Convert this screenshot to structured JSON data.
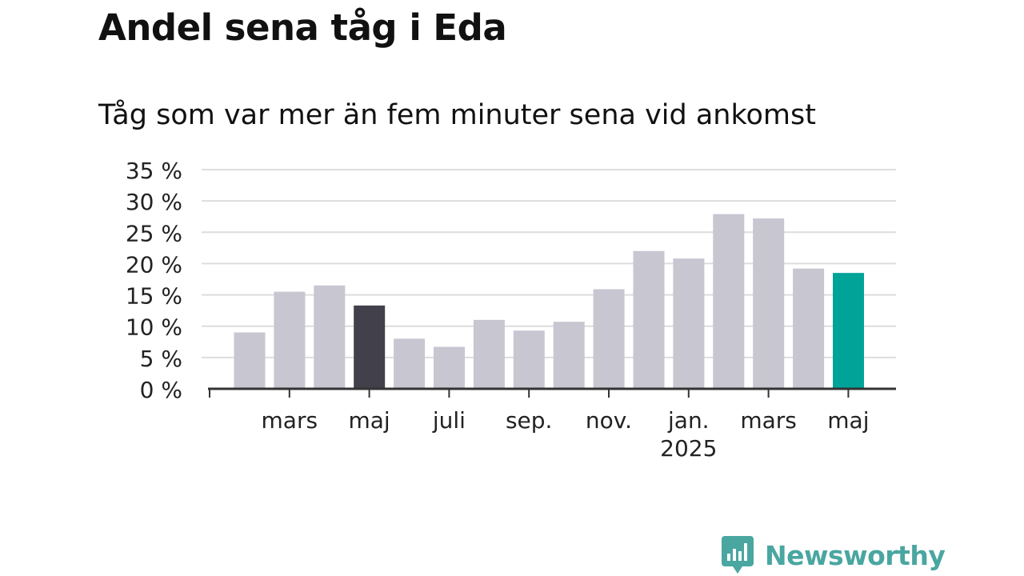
{
  "header": {
    "title": "Andel sena tåg i Eda",
    "subtitle": "Tåg som var mer än fem minuter sena vid ankomst"
  },
  "brand": {
    "name": "Newsworthy",
    "color": "#4aa6a0"
  },
  "colors": {
    "bar_default": "#c8c6d1",
    "bar_highlight_dark": "#42404b",
    "bar_highlight_current": "#00a398",
    "grid": "#dddddd",
    "axis": "#333333"
  },
  "chart_data": {
    "type": "bar",
    "months": [
      "2024-02",
      "2024-03",
      "2024-04",
      "2024-05",
      "2024-06",
      "2024-07",
      "2024-08",
      "2024-09",
      "2024-10",
      "2024-11",
      "2024-12",
      "2025-01",
      "2025-02",
      "2025-03",
      "2025-04",
      "2025-05"
    ],
    "values": [
      9.0,
      15.5,
      16.5,
      13.3,
      8.0,
      6.7,
      11.0,
      9.3,
      10.7,
      15.9,
      22.0,
      20.8,
      27.9,
      27.2,
      19.2,
      18.5
    ],
    "highlights": {
      "3": "bar_highlight_dark",
      "15": "bar_highlight_current"
    },
    "y_ticks": [
      {
        "value": 0,
        "label": "0 %"
      },
      {
        "value": 5,
        "label": "5 %"
      },
      {
        "value": 10,
        "label": "10 %"
      },
      {
        "value": 15,
        "label": "15 %"
      },
      {
        "value": 20,
        "label": "20 %"
      },
      {
        "value": 25,
        "label": "25 %"
      },
      {
        "value": 30,
        "label": "30 %"
      },
      {
        "value": 35,
        "label": "35 %"
      }
    ],
    "x_tick_labels": [
      {
        "index": 1,
        "label": "mars"
      },
      {
        "index": 3,
        "label": "maj"
      },
      {
        "index": 5,
        "label": "juli"
      },
      {
        "index": 7,
        "label": "sep."
      },
      {
        "index": 9,
        "label": "nov."
      },
      {
        "index": 11,
        "label": "jan.",
        "sublabel": "2025"
      },
      {
        "index": 13,
        "label": "mars"
      },
      {
        "index": 15,
        "label": "maj"
      }
    ],
    "ylim": [
      0,
      35
    ],
    "grid": true,
    "xlabel": "",
    "ylabel": ""
  }
}
